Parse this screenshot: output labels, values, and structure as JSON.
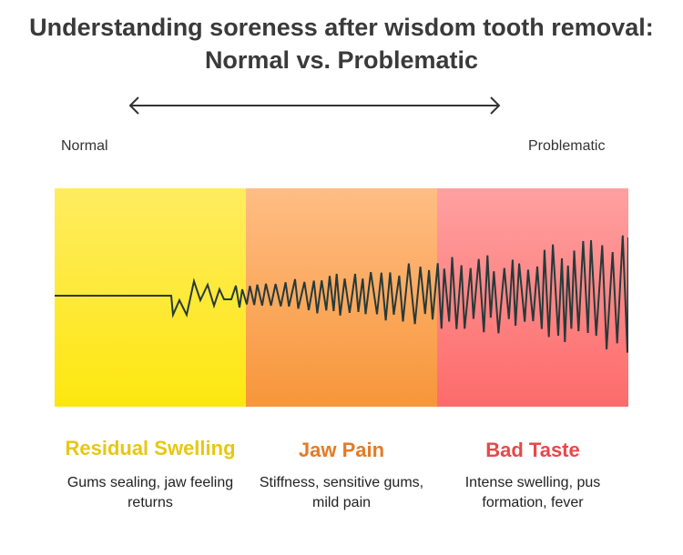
{
  "title": "Understanding soreness after wisdom tooth removal: Normal vs. Problematic",
  "scale": {
    "left_label": "Normal",
    "right_label": "Problematic"
  },
  "colors": {
    "yellow": "#fde910",
    "orange": "#f7963a",
    "red": "#fd6b6b"
  },
  "stages": [
    {
      "heading": "Residual Swelling",
      "description": "Gums sealing, jaw feeling returns",
      "color": "#e6c812"
    },
    {
      "heading": "Jaw Pain",
      "description": "Stiffness, sensitive gums, mild pain",
      "color": "#e67a25"
    },
    {
      "heading": "Bad Taste",
      "description": "Intense swelling, pus formation, fever",
      "color": "#e84848"
    }
  ]
}
